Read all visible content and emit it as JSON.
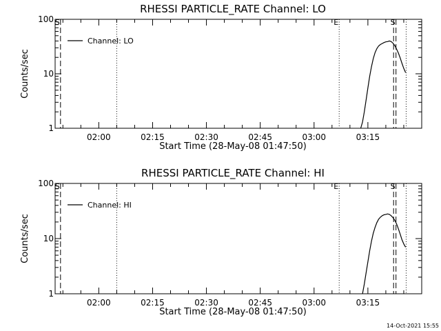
{
  "footer": {
    "timestamp": "14-Oct-2021 15:55"
  },
  "chart_data": [
    {
      "type": "line",
      "title": "RHESSI PARTICLE_RATE Channel: LO",
      "xlabel": "Start Time (28-May-08 01:47:50)",
      "ylabel": "Counts/sec",
      "yscale": "log",
      "ylim": [
        1,
        100
      ],
      "xlim": [
        "01:47:50",
        "03:30:00"
      ],
      "yticks": [
        "1",
        "10",
        "100"
      ],
      "xticks": [
        "02:00",
        "02:15",
        "02:30",
        "02:45",
        "03:00",
        "03:15"
      ],
      "grid": false,
      "legend": {
        "position": "top-left",
        "label": "Channel: LO"
      },
      "series": [
        {
          "name": "Channel: LO",
          "x": [
            "03:13:00",
            "03:13:30",
            "03:14:00",
            "03:14:30",
            "03:15:00",
            "03:15:30",
            "03:16:00",
            "03:16:30",
            "03:17:00",
            "03:17:30",
            "03:18:00",
            "03:18:30",
            "03:19:00",
            "03:19:30",
            "03:20:00",
            "03:20:30",
            "03:21:00",
            "03:21:30",
            "03:22:00",
            "03:22:30",
            "03:23:00",
            "03:23:30",
            "03:24:00",
            "03:24:30",
            "03:25:00",
            "03:25:30"
          ],
          "y": [
            1.0,
            1.3,
            2.0,
            3.3,
            5.5,
            9.0,
            13.5,
            19.0,
            24.5,
            29.0,
            32.5,
            34.5,
            36.0,
            37.5,
            38.5,
            39.0,
            40.0,
            39.0,
            36.5,
            33.0,
            28.5,
            24.0,
            19.5,
            15.5,
            12.5,
            10.5
          ]
        }
      ],
      "markers": [
        {
          "label": "S",
          "time": "01:49:20",
          "style": "dashed"
        },
        {
          "label": "",
          "time": "02:05:00",
          "style": "dotted"
        },
        {
          "label": "E",
          "time": "03:07:00",
          "style": "dotted"
        },
        {
          "label": "",
          "time": "03:22:10",
          "style": "dashed"
        },
        {
          "label": "S",
          "time": "03:22:50",
          "style": "dashed"
        },
        {
          "label": "",
          "time": "03:25:40",
          "style": "dotted"
        }
      ]
    },
    {
      "type": "line",
      "title": "RHESSI PARTICLE_RATE Channel: HI",
      "xlabel": "Start Time (28-May-08 01:47:50)",
      "ylabel": "Counts/sec",
      "yscale": "log",
      "ylim": [
        1,
        100
      ],
      "xlim": [
        "01:47:50",
        "03:30:00"
      ],
      "yticks": [
        "1",
        "10",
        "100"
      ],
      "xticks": [
        "02:00",
        "02:15",
        "02:30",
        "02:45",
        "03:00",
        "03:15"
      ],
      "grid": false,
      "legend": {
        "position": "top-left",
        "label": "Channel: HI"
      },
      "series": [
        {
          "name": "Channel: HI",
          "x": [
            "03:13:30",
            "03:14:00",
            "03:14:30",
            "03:15:00",
            "03:15:30",
            "03:16:00",
            "03:16:30",
            "03:17:00",
            "03:17:30",
            "03:18:00",
            "03:18:30",
            "03:19:00",
            "03:19:30",
            "03:20:00",
            "03:20:30",
            "03:21:00",
            "03:21:30",
            "03:22:00",
            "03:22:30",
            "03:23:00",
            "03:23:30",
            "03:24:00",
            "03:24:30",
            "03:25:00",
            "03:25:30"
          ],
          "y": [
            1.0,
            1.5,
            2.4,
            3.8,
            6.0,
            9.0,
            12.5,
            16.0,
            19.5,
            22.5,
            24.5,
            26.0,
            27.0,
            27.5,
            28.0,
            27.5,
            26.0,
            24.0,
            21.5,
            18.5,
            15.0,
            12.0,
            9.5,
            8.0,
            7.0
          ]
        }
      ],
      "markers": [
        {
          "label": "S",
          "time": "01:49:20",
          "style": "dashed"
        },
        {
          "label": "",
          "time": "02:05:00",
          "style": "dotted"
        },
        {
          "label": "E",
          "time": "03:07:00",
          "style": "dotted"
        },
        {
          "label": "",
          "time": "03:22:10",
          "style": "dashed"
        },
        {
          "label": "S",
          "time": "03:22:50",
          "style": "dashed"
        },
        {
          "label": "",
          "time": "03:25:40",
          "style": "dotted"
        }
      ]
    }
  ]
}
